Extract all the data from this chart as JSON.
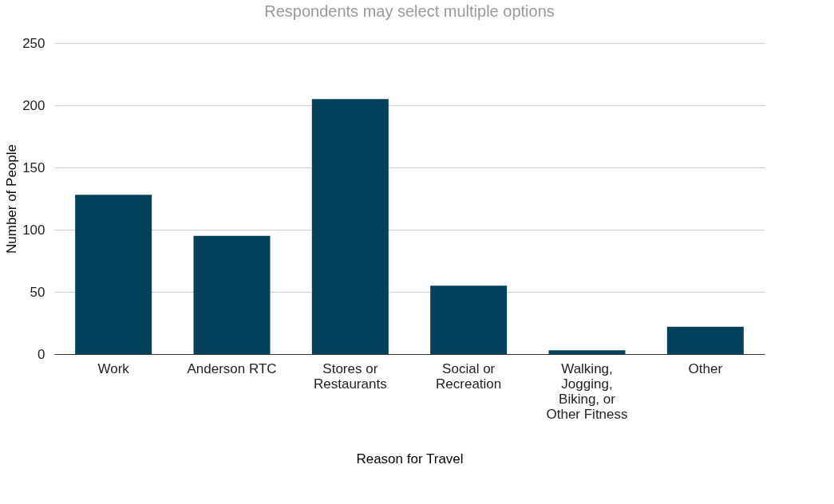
{
  "chart_data": {
    "type": "bar",
    "title": "Respondents may select multiple options",
    "categories": [
      "Work",
      "Anderson RTC",
      "Stores or Restaurants",
      "Social or Recreation",
      "Walking, Jogging, Biking, or Other Fitness",
      "Other"
    ],
    "values": [
      128,
      95,
      205,
      55,
      3,
      22
    ],
    "color": "#02405c",
    "xlabel": "Reason for Travel",
    "ylabel": "Number of People",
    "ylim": [
      0,
      250
    ],
    "yticks": [
      0,
      50,
      100,
      150,
      200,
      250
    ],
    "grid": "y"
  }
}
